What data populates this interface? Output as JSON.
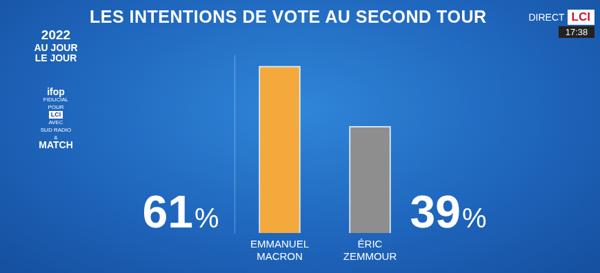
{
  "chart_data": {
    "type": "bar",
    "title": "LES INTENTIONS DE VOTE AU SECOND TOUR",
    "categories": [
      "EMMANUEL MACRON",
      "ÉRIC ZEMMOUR"
    ],
    "values": [
      61,
      39
    ],
    "value_labels": [
      "61%",
      "39%"
    ],
    "colors": [
      "#f4a93c",
      "#8e8e8e"
    ],
    "ylim": [
      0,
      65
    ],
    "grid": false,
    "data_labels": true,
    "tick_labels": "x"
  },
  "branding": {
    "logo": [
      "2022",
      "AU JOUR",
      "LE JOUR"
    ],
    "source": [
      "ifop",
      "FIDUCIAL",
      "POUR",
      "LCI",
      "AVEC",
      "SUD RADIO",
      "&",
      "MATCH"
    ],
    "live": "DIRECT",
    "channel": "LCI",
    "time": "17:38"
  }
}
